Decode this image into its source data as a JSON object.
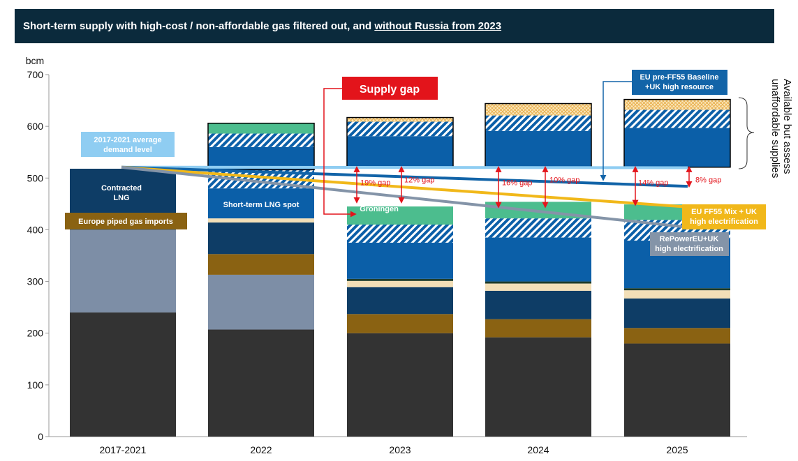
{
  "header": {
    "title_main": "Short-term supply with high-cost / non-affordable gas filtered out, and ",
    "title_underlined": "without Russia from 2023"
  },
  "chart_data": {
    "type": "bar",
    "stacked": true,
    "unit_label": "bcm",
    "ylim": [
      0,
      700
    ],
    "yticks": [
      0,
      100,
      200,
      300,
      400,
      500,
      600,
      700
    ],
    "categories": [
      "2017-2021",
      "2022",
      "2023",
      "2024",
      "2025"
    ],
    "series": [
      {
        "color": "#333333",
        "values": [
          240,
          207,
          200,
          192,
          180
        ]
      },
      {
        "color": "#7d8ea6",
        "values": [
          160,
          106,
          0,
          0,
          0
        ]
      },
      {
        "color": "#8a6212",
        "values": [
          0,
          40,
          37,
          35,
          30
        ]
      },
      {
        "color": "#0e3d66",
        "values": [
          118,
          61,
          52,
          55,
          57
        ]
      },
      {
        "color": "#f2dfb8",
        "values": [
          0,
          8,
          12,
          14,
          16
        ]
      },
      {
        "color": "#1d3b2a",
        "values": [
          0,
          0,
          4,
          4,
          4
        ]
      },
      {
        "color": "#0b5fa8",
        "values": [
          0,
          58,
          70,
          85,
          92
        ]
      },
      {
        "color": "#0b5fa8",
        "pattern": "hatch",
        "values": [
          0,
          36,
          35,
          37,
          40
        ]
      },
      {
        "color": "#4cbd8e",
        "values": [
          0,
          0,
          35,
          32,
          30
        ]
      }
    ],
    "unaffordable_supplies": [
      {
        "category": "2022",
        "segments": [
          {
            "color": "#0b5fa8",
            "value": 44
          },
          {
            "color": "#0b5fa8",
            "pattern": "hatch",
            "value": 26
          },
          {
            "color": "#4cbd8e",
            "value": 20
          }
        ]
      },
      {
        "category": "2023",
        "segments": [
          {
            "color": "#0b5fa8",
            "value": 60
          },
          {
            "color": "#0b5fa8",
            "pattern": "hatch",
            "value": 28
          },
          {
            "color": "#f2c879",
            "pattern": "crosshatch",
            "value": 8
          }
        ]
      },
      {
        "category": "2024",
        "segments": [
          {
            "color": "#0b5fa8",
            "value": 70
          },
          {
            "color": "#0b5fa8",
            "pattern": "hatch",
            "value": 30
          },
          {
            "color": "#f2c879",
            "pattern": "crosshatch",
            "value": 23
          }
        ]
      },
      {
        "category": "2025",
        "segments": [
          {
            "color": "#0b5fa8",
            "value": 76
          },
          {
            "color": "#0b5fa8",
            "pattern": "hatch",
            "value": 35
          },
          {
            "color": "#f2c879",
            "pattern": "crosshatch",
            "value": 20
          }
        ]
      }
    ],
    "demand_lines": [
      {
        "name": "2017-2021 average demand level",
        "color": "#8fcdf2",
        "start": 521,
        "end": 520
      },
      {
        "name": "EU pre-FF55 Baseline +UK high resource",
        "color": "#1264a8",
        "start": 521,
        "end": 484
      },
      {
        "name": "EU FF55 Mix + UK high electrification",
        "color": "#f1b81a",
        "start": 521,
        "end": 444
      },
      {
        "name": "RePowerEU+UK high electrification",
        "color": "#8494a8",
        "start": 521,
        "end": 405
      }
    ],
    "gap_annotations": [
      {
        "category": "2023",
        "label": "19% gap",
        "from": 453,
        "to": 521
      },
      {
        "category": "2023",
        "label": "12% gap",
        "from": 453,
        "to": 521
      },
      {
        "category": "2024",
        "label": "16% gap",
        "from": 444,
        "to": 521
      },
      {
        "category": "2024",
        "label": "10% gap",
        "from": 444,
        "to": 521
      },
      {
        "category": "2025",
        "label": "14% gap",
        "from": 448,
        "to": 521
      },
      {
        "category": "2025",
        "label": "8% gap",
        "from": 484,
        "to": 521
      }
    ],
    "labels": {
      "contracted_lng": [
        "Contracted",
        "LNG"
      ],
      "europe_piped": "Europe piped gas imports",
      "short_term_lng": "Short-term LNG spot",
      "groningen": "Groningen",
      "supply_gap": "Supply gap",
      "avg_demand": [
        "2017-2021 average",
        "demand level"
      ],
      "baseline": [
        "EU pre-FF55 Baseline",
        "+UK high resource"
      ],
      "ff55": [
        "EU FF55 Mix + UK",
        "high electrification"
      ],
      "repower": [
        "RePowerEU+UK",
        "high electrification"
      ],
      "side_note": [
        "Available but assess",
        "unaffordable supplies"
      ]
    },
    "colors": {
      "axis": "#999999",
      "gap_red": "#e3141b",
      "callout_navy": "#1264a8",
      "callout_amber": "#f1b81a",
      "callout_grey": "#8494a8",
      "callout_sky": "#8fcdf2",
      "callout_brown": "#8a6212",
      "callout_dark_navy": "#0e3d66"
    }
  }
}
